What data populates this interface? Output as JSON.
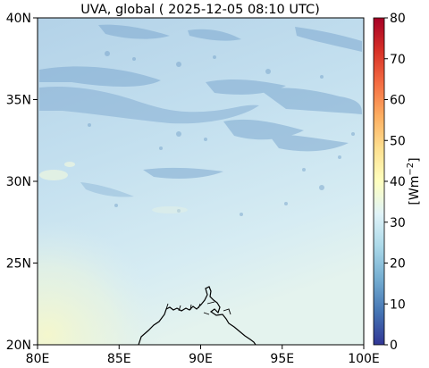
{
  "title": "UVA, global ( 2025-12-05 08:10 UTC)",
  "map": {
    "lon_range": [
      80,
      100
    ],
    "lat_range": [
      20,
      40
    ],
    "x_ticks": [
      "80E",
      "85E",
      "90E",
      "95E",
      "100E"
    ],
    "y_ticks": [
      "20N",
      "25N",
      "30N",
      "35N",
      "40N"
    ]
  },
  "colorbar": {
    "label": "[Wm",
    "label_exp": "−2",
    "label_close": "]",
    "range": [
      0,
      80
    ],
    "ticks": [
      "0",
      "10",
      "20",
      "30",
      "40",
      "50",
      "60",
      "70",
      "80"
    ],
    "colors": [
      "#313695",
      "#4575b4",
      "#74add1",
      "#abd9e9",
      "#e0f3f8",
      "#ffffbf",
      "#fee090",
      "#fdae61",
      "#f46d43",
      "#d73027",
      "#a50026"
    ]
  }
}
